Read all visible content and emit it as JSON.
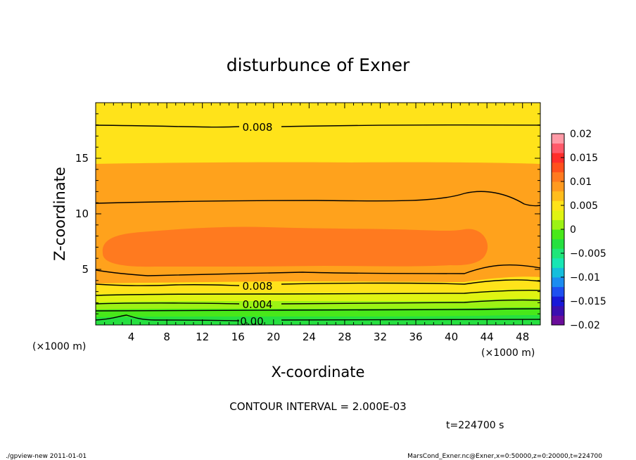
{
  "chart_data": {
    "type": "contour",
    "title": "disturbunce of Exner",
    "xlabel": "X-coordinate",
    "ylabel": "Z-coordinate",
    "x_unit_note": "(×1000 m)",
    "y_unit_note": "(×1000 m)",
    "xlim": [
      0,
      50
    ],
    "ylim": [
      0,
      20
    ],
    "x_ticks": [
      4,
      8,
      12,
      16,
      20,
      24,
      28,
      32,
      36,
      40,
      44,
      48
    ],
    "y_ticks": [
      5,
      10,
      15
    ],
    "contour_interval_text": "CONTOUR INTERVAL = 2.000E-03",
    "time_text": "t=224700 s",
    "contour_labels": [
      "0.008",
      "0.008",
      "0.004",
      "0.00"
    ],
    "colorbar": {
      "min": -0.02,
      "max": 0.02,
      "tick_labels": [
        "0.02",
        "0.015",
        "0.01",
        "0.005",
        "0",
        "−0.005",
        "−0.01",
        "−0.015",
        "−0.02"
      ],
      "colors": [
        "#6a0d9a",
        "#3a0fb0",
        "#1818d8",
        "#1e50f0",
        "#1c8cf0",
        "#15bedc",
        "#18e6b4",
        "#1fe67a",
        "#26e040",
        "#48e81a",
        "#9cf214",
        "#e0f412",
        "#ffe31a",
        "#ffbd1c",
        "#ff9a1f",
        "#ff7a1f",
        "#ff501c",
        "#ff2d2a",
        "#ff5a6a",
        "#ff9aa6"
      ]
    },
    "regions": [
      {
        "level": 0.008,
        "color": "#ffe31a",
        "note": "top layer, z>14.5"
      },
      {
        "level": 0.01,
        "color": "#ffa21c",
        "note": "z 4–14.5"
      },
      {
        "level": 0.012,
        "color": "#ff7a1f",
        "note": "core z≈5.5–9"
      },
      {
        "level": 0.006,
        "color": "#ffe31a",
        "note": "z≈3.3–4"
      },
      {
        "level": 0.004,
        "color": "#e0f412",
        "note": "z≈2.3–3.3"
      },
      {
        "level": 0.002,
        "color": "#9cf214",
        "note": "z≈1.5–2.3"
      },
      {
        "level": 0.0,
        "color": "#48e81a",
        "note": "z<1.5"
      }
    ]
  },
  "footer": {
    "left": "./gpview-new   2011-01-01",
    "right": "MarsCond_Exner.nc@Exner,x=0:50000,z=0:20000,t=224700"
  }
}
